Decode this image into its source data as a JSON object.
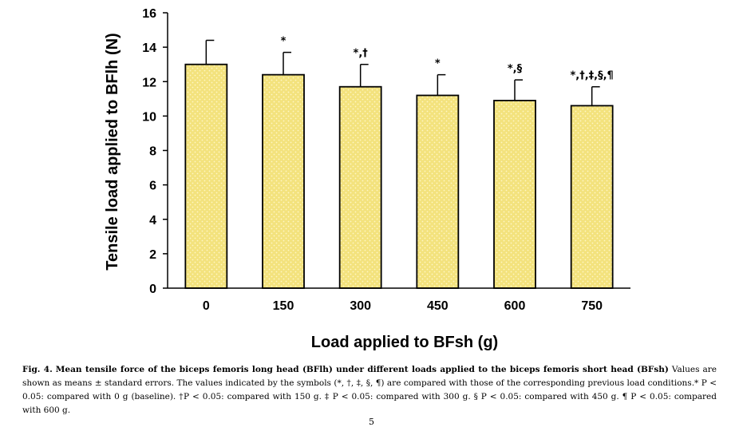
{
  "chart_data": {
    "type": "bar",
    "categories": [
      "0",
      "150",
      "300",
      "450",
      "600",
      "750"
    ],
    "values": [
      13.0,
      12.4,
      11.7,
      11.2,
      10.9,
      10.6
    ],
    "errors": [
      1.4,
      1.3,
      1.3,
      1.2,
      1.2,
      1.1
    ],
    "significance": [
      "",
      "*",
      "*,†",
      "*",
      "*,§",
      "*,†,‡,§,¶"
    ],
    "yticks": [
      0,
      2,
      4,
      6,
      8,
      10,
      12,
      14,
      16
    ],
    "ylim": [
      0,
      16
    ],
    "xlabel": "Load applied to BFsh (g)",
    "ylabel": "Tensile load applied to BFlh (N)",
    "title": "",
    "bar_color": "#f3e27d",
    "bar_edge_color": "#000000",
    "grid": false
  },
  "caption": {
    "label": "Fig. 4.",
    "title": "Mean tensile force of the biceps femoris long head (BFlh) under different loads applied to the biceps femoris short head (BFsh)",
    "text": "Values are shown as means ± standard errors. The values indicated by the symbols (*, †, ‡, §, ¶) are compared with those of the corresponding previous load conditions.* P < 0.05: compared with 0 g (baseline). †P < 0.05: compared with 150 g. ‡ P < 0.05: compared with 300 g. § P < 0.05: compared with 450 g. ¶ P < 0.05: compared with 600 g."
  },
  "page_number": "5"
}
